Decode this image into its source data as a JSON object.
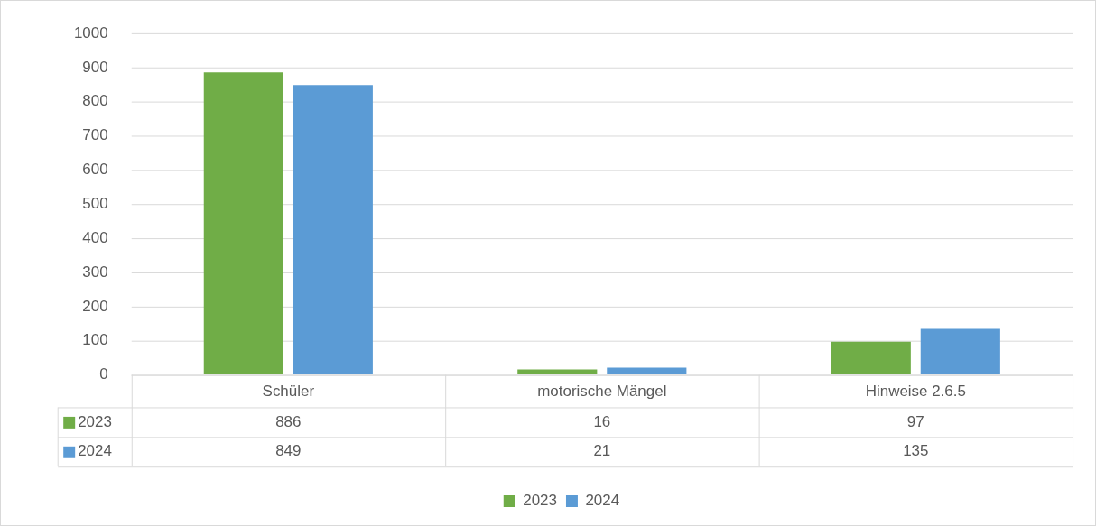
{
  "chart_data": {
    "type": "bar",
    "categories": [
      "Schüler",
      "motorische Mängel",
      "Hinweise 2.6.5"
    ],
    "series": [
      {
        "name": "2023",
        "color": "#70ad47",
        "values": [
          886,
          16,
          97
        ]
      },
      {
        "name": "2024",
        "color": "#5b9bd5",
        "values": [
          849,
          21,
          135
        ]
      }
    ],
    "ylim": [
      0,
      1000
    ],
    "yticks": [
      0,
      100,
      200,
      300,
      400,
      500,
      600,
      700,
      800,
      900,
      1000
    ],
    "grid": "y",
    "legend": "bottom",
    "data_labels": true
  }
}
